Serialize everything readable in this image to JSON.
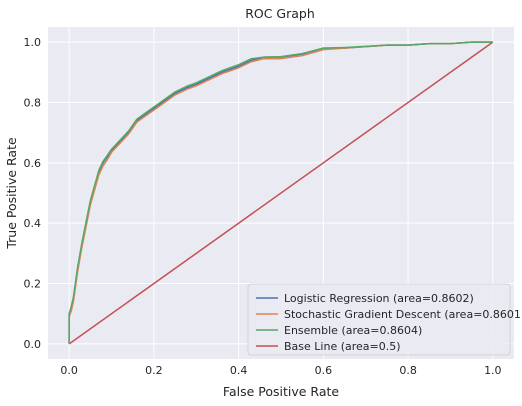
{
  "chart_data": {
    "type": "line",
    "title": "ROC Graph",
    "xlabel": "False Positive Rate",
    "ylabel": "True Positive Rate",
    "xlim": [
      -0.05,
      1.05
    ],
    "ylim": [
      -0.05,
      1.05
    ],
    "xticks": [
      0.0,
      0.2,
      0.4,
      0.6,
      0.8,
      1.0
    ],
    "yticks": [
      0.0,
      0.2,
      0.4,
      0.6,
      0.8,
      1.0
    ],
    "xtick_labels": [
      "0.0",
      "0.2",
      "0.4",
      "0.6",
      "0.8",
      "1.0"
    ],
    "ytick_labels": [
      "0.0",
      "0.2",
      "0.4",
      "0.6",
      "0.8",
      "1.0"
    ],
    "grid": true,
    "legend_position": "bottom-right",
    "series": [
      {
        "name": "Logistic Regression (area=0.8602)",
        "color": "#4c72b0",
        "x": [
          0,
          0,
          0.005,
          0.01,
          0.02,
          0.03,
          0.04,
          0.05,
          0.06,
          0.07,
          0.08,
          0.09,
          0.1,
          0.12,
          0.14,
          0.16,
          0.18,
          0.2,
          0.22,
          0.25,
          0.28,
          0.3,
          0.33,
          0.36,
          0.4,
          0.43,
          0.46,
          0.5,
          0.55,
          0.6,
          0.65,
          0.7,
          0.75,
          0.8,
          0.85,
          0.9,
          0.95,
          1.0
        ],
        "y": [
          0,
          0.1,
          0.12,
          0.15,
          0.25,
          0.33,
          0.4,
          0.47,
          0.52,
          0.57,
          0.6,
          0.62,
          0.64,
          0.67,
          0.7,
          0.74,
          0.76,
          0.78,
          0.8,
          0.83,
          0.85,
          0.86,
          0.88,
          0.9,
          0.92,
          0.94,
          0.95,
          0.95,
          0.96,
          0.98,
          0.98,
          0.985,
          0.99,
          0.99,
          0.995,
          0.995,
          1.0,
          1.0
        ]
      },
      {
        "name": "Stochastic Gradient Descent (area=0.8601)",
        "color": "#dd8452",
        "x": [
          0,
          0,
          0.005,
          0.01,
          0.02,
          0.03,
          0.04,
          0.05,
          0.06,
          0.07,
          0.08,
          0.09,
          0.1,
          0.12,
          0.14,
          0.16,
          0.18,
          0.2,
          0.22,
          0.25,
          0.28,
          0.3,
          0.33,
          0.36,
          0.4,
          0.43,
          0.46,
          0.5,
          0.55,
          0.6,
          0.65,
          0.7,
          0.75,
          0.8,
          0.85,
          0.9,
          0.95,
          1.0
        ],
        "y": [
          0,
          0.09,
          0.11,
          0.14,
          0.24,
          0.32,
          0.39,
          0.46,
          0.51,
          0.56,
          0.59,
          0.61,
          0.635,
          0.665,
          0.695,
          0.735,
          0.755,
          0.775,
          0.795,
          0.825,
          0.845,
          0.855,
          0.875,
          0.895,
          0.915,
          0.935,
          0.945,
          0.945,
          0.955,
          0.975,
          0.98,
          0.985,
          0.99,
          0.99,
          0.995,
          0.995,
          1.0,
          1.0
        ]
      },
      {
        "name": "Ensemble (area=0.8604)",
        "color": "#55a868",
        "x": [
          0,
          0,
          0.005,
          0.01,
          0.02,
          0.03,
          0.04,
          0.05,
          0.06,
          0.07,
          0.08,
          0.09,
          0.1,
          0.12,
          0.14,
          0.16,
          0.18,
          0.2,
          0.22,
          0.25,
          0.28,
          0.3,
          0.33,
          0.36,
          0.4,
          0.43,
          0.46,
          0.5,
          0.55,
          0.6,
          0.65,
          0.7,
          0.75,
          0.8,
          0.85,
          0.9,
          0.95,
          1.0
        ],
        "y": [
          0,
          0.1,
          0.125,
          0.155,
          0.255,
          0.335,
          0.405,
          0.475,
          0.525,
          0.575,
          0.605,
          0.625,
          0.645,
          0.675,
          0.705,
          0.745,
          0.765,
          0.785,
          0.805,
          0.835,
          0.855,
          0.865,
          0.885,
          0.905,
          0.925,
          0.945,
          0.95,
          0.952,
          0.962,
          0.98,
          0.982,
          0.986,
          0.99,
          0.99,
          0.995,
          0.995,
          1.0,
          1.0
        ]
      },
      {
        "name": "Base Line (area=0.5)",
        "color": "#c44e52",
        "x": [
          0,
          1
        ],
        "y": [
          0,
          1
        ]
      }
    ]
  }
}
